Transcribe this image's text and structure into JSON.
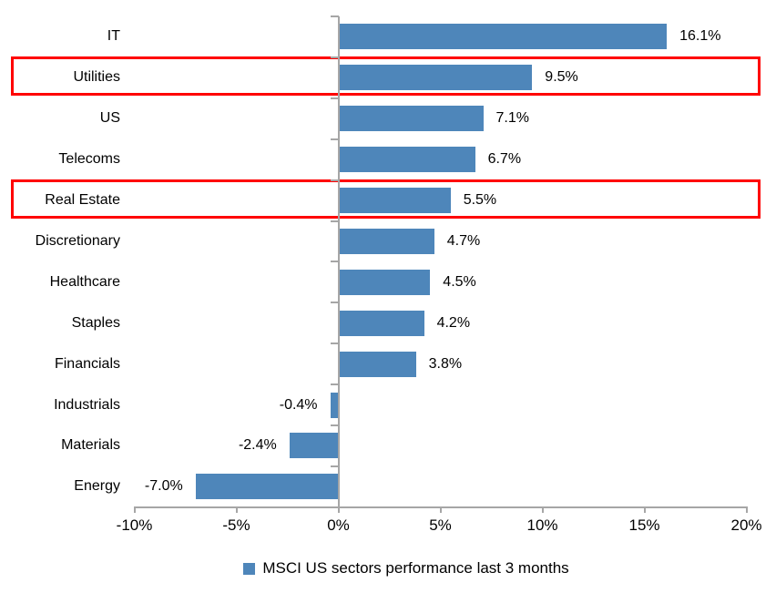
{
  "chart_data": {
    "type": "bar",
    "orientation": "horizontal",
    "categories": [
      "IT",
      "Utilities",
      "US",
      "Telecoms",
      "Real Estate",
      "Discretionary",
      "Healthcare",
      "Staples",
      "Financials",
      "Industrials",
      "Materials",
      "Energy"
    ],
    "values": [
      16.1,
      9.5,
      7.1,
      6.7,
      5.5,
      4.7,
      4.5,
      4.2,
      3.8,
      -0.4,
      -2.4,
      -7.0
    ],
    "data_labels": [
      "16.1%",
      "9.5%",
      "7.1%",
      "6.7%",
      "5.5%",
      "4.7%",
      "4.5%",
      "4.2%",
      "3.8%",
      "-0.4%",
      "-2.4%",
      "-7.0%"
    ],
    "highlighted_categories": [
      "Utilities",
      "Real Estate"
    ],
    "x_axis": {
      "min": -10,
      "max": 20,
      "ticks": [
        -10,
        -5,
        0,
        5,
        10,
        15,
        20
      ],
      "tick_labels": [
        "-10%",
        "-5%",
        "0%",
        "5%",
        "10%",
        "15%",
        "20%"
      ]
    },
    "legend": [
      {
        "label": "MSCI US sectors performance last 3 months",
        "color": "#4e86ba"
      }
    ],
    "grid": false,
    "legend_position": "bottom-center",
    "bar_color": "#4e86ba",
    "highlight_color": "#ff0000",
    "axis_color": "#a6a6a6",
    "text_color": "#000000"
  }
}
